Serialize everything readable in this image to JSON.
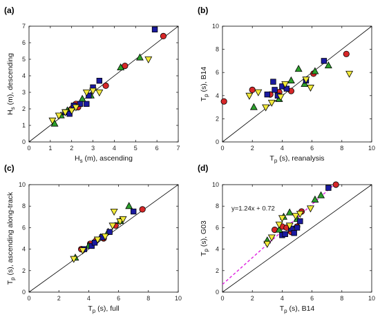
{
  "colors": {
    "red": "#d62728",
    "green": "#2ca02c",
    "blue": "#1a1aa0",
    "yellow": "#f2ea3a",
    "fit": "#e020e0",
    "identity": "#000000"
  },
  "chart_data": [
    {
      "type": "scatter",
      "panel_label": "(a)",
      "xlabel": "H_s (m), ascending",
      "ylabel": "H_s (m), descending",
      "xlim": [
        0,
        7
      ],
      "ylim": [
        0,
        7
      ],
      "xticks": [
        0,
        1,
        2,
        3,
        4,
        5,
        6,
        7
      ],
      "yticks": [
        0,
        1,
        2,
        3,
        4,
        5,
        6,
        7
      ],
      "identity_line": true,
      "series": [
        {
          "marker": "circle",
          "color": "red",
          "points": [
            [
              2.0,
              2.0
            ],
            [
              2.1,
              2.2
            ],
            [
              2.2,
              2.3
            ],
            [
              2.3,
              2.1
            ],
            [
              3.6,
              3.4
            ],
            [
              4.5,
              4.6
            ],
            [
              6.3,
              6.4
            ]
          ]
        },
        {
          "marker": "triangle",
          "color": "green",
          "points": [
            [
              1.2,
              1.1
            ],
            [
              1.5,
              1.6
            ],
            [
              1.8,
              1.9
            ],
            [
              2.5,
              2.6
            ],
            [
              2.9,
              2.8
            ],
            [
              4.3,
              4.5
            ],
            [
              5.2,
              5.1
            ]
          ]
        },
        {
          "marker": "square",
          "color": "blue",
          "points": [
            [
              1.7,
              1.8
            ],
            [
              1.9,
              1.7
            ],
            [
              2.1,
              2.2
            ],
            [
              2.4,
              2.3
            ],
            [
              2.7,
              2.3
            ],
            [
              2.8,
              2.8
            ],
            [
              3.3,
              3.7
            ],
            [
              3.0,
              3.3
            ],
            [
              5.9,
              6.8
            ]
          ]
        },
        {
          "marker": "triangle-down",
          "color": "yellow",
          "points": [
            [
              1.1,
              1.3
            ],
            [
              1.4,
              1.6
            ],
            [
              1.7,
              1.8
            ],
            [
              2.0,
              1.9
            ],
            [
              2.2,
              2.1
            ],
            [
              2.7,
              3.0
            ],
            [
              3.0,
              3.1
            ],
            [
              3.3,
              3.0
            ],
            [
              5.6,
              5.0
            ]
          ]
        }
      ]
    },
    {
      "type": "scatter",
      "panel_label": "(b)",
      "xlabel": "T_p (s), reanalysis",
      "ylabel": "T_p (s), B14",
      "xlim": [
        0,
        10
      ],
      "ylim": [
        0,
        10
      ],
      "xticks": [
        0,
        2,
        4,
        6,
        8,
        10
      ],
      "yticks": [
        0,
        2,
        4,
        6,
        8,
        10
      ],
      "identity_line": true,
      "series": [
        {
          "marker": "circle",
          "color": "red",
          "points": [
            [
              0.1,
              3.5
            ],
            [
              2.0,
              4.5
            ],
            [
              3.2,
              4.1
            ],
            [
              3.8,
              4.3
            ],
            [
              4.1,
              4.8
            ],
            [
              4.6,
              4.4
            ],
            [
              6.1,
              5.9
            ],
            [
              8.3,
              7.6
            ]
          ]
        },
        {
          "marker": "triangle",
          "color": "green",
          "points": [
            [
              2.1,
              3.0
            ],
            [
              3.8,
              3.7
            ],
            [
              4.6,
              5.3
            ],
            [
              5.1,
              6.3
            ],
            [
              5.5,
              5.0
            ],
            [
              6.2,
              6.1
            ],
            [
              7.1,
              6.6
            ]
          ]
        },
        {
          "marker": "square",
          "color": "blue",
          "points": [
            [
              3.0,
              4.1
            ],
            [
              3.4,
              5.2
            ],
            [
              3.5,
              4.5
            ],
            [
              3.7,
              4.0
            ],
            [
              4.0,
              4.8
            ],
            [
              4.3,
              4.6
            ],
            [
              5.6,
              5.3
            ],
            [
              6.8,
              7.0
            ]
          ]
        },
        {
          "marker": "triangle-down",
          "color": "yellow",
          "points": [
            [
              1.8,
              4.0
            ],
            [
              2.4,
              4.3
            ],
            [
              2.9,
              3.0
            ],
            [
              3.3,
              3.4
            ],
            [
              3.9,
              3.9
            ],
            [
              4.2,
              5.0
            ],
            [
              5.6,
              5.4
            ],
            [
              5.9,
              4.7
            ],
            [
              8.5,
              5.9
            ]
          ]
        }
      ]
    },
    {
      "type": "scatter",
      "panel_label": "(c)",
      "xlabel": "T_p (s), full",
      "ylabel": "T_p (s), ascending along-track",
      "xlim": [
        0,
        10
      ],
      "ylim": [
        0,
        10
      ],
      "xticks": [
        0,
        2,
        4,
        6,
        8,
        10
      ],
      "yticks": [
        0,
        2,
        4,
        6,
        8,
        10
      ],
      "identity_line": true,
      "series": [
        {
          "marker": "circle",
          "color": "red",
          "points": [
            [
              3.5,
              4.0
            ],
            [
              4.1,
              4.5
            ],
            [
              4.5,
              4.8
            ],
            [
              5.0,
              5.0
            ],
            [
              5.8,
              6.2
            ],
            [
              7.6,
              7.7
            ]
          ]
        },
        {
          "marker": "triangle",
          "color": "green",
          "points": [
            [
              3.1,
              3.2
            ],
            [
              4.0,
              4.3
            ],
            [
              4.8,
              5.1
            ],
            [
              5.3,
              5.6
            ],
            [
              6.1,
              6.6
            ],
            [
              6.7,
              8.0
            ]
          ]
        },
        {
          "marker": "square",
          "color": "blue",
          "points": [
            [
              3.7,
              4.0
            ],
            [
              4.2,
              4.3
            ],
            [
              4.4,
              4.6
            ],
            [
              4.9,
              5.1
            ],
            [
              5.4,
              5.6
            ],
            [
              7.0,
              7.5
            ]
          ]
        },
        {
          "marker": "triangle-down",
          "color": "yellow",
          "points": [
            [
              3.0,
              3.1
            ],
            [
              3.6,
              3.9
            ],
            [
              4.6,
              4.9
            ],
            [
              5.1,
              5.2
            ],
            [
              5.6,
              6.2
            ],
            [
              6.1,
              6.6
            ],
            [
              6.3,
              6.8
            ],
            [
              5.7,
              7.5
            ]
          ]
        }
      ]
    },
    {
      "type": "scatter",
      "panel_label": "(d)",
      "xlabel": "T_p (s), B14",
      "ylabel": "T_p (s),  G03",
      "xlim": [
        0,
        10
      ],
      "ylim": [
        0,
        10
      ],
      "xticks": [
        0,
        2,
        4,
        6,
        8,
        10
      ],
      "yticks": [
        0,
        2,
        4,
        6,
        8,
        10
      ],
      "identity_line": true,
      "fit": {
        "label": "y=1.24x + 0.72",
        "slope": 1.24,
        "intercept": 0.72,
        "style": "dashed"
      },
      "series": [
        {
          "marker": "circle",
          "color": "red",
          "points": [
            [
              3.5,
              5.8
            ],
            [
              4.0,
              6.1
            ],
            [
              4.3,
              6.0
            ],
            [
              4.6,
              5.6
            ],
            [
              5.0,
              6.1
            ],
            [
              5.3,
              7.5
            ],
            [
              7.6,
              10.0
            ]
          ]
        },
        {
          "marker": "triangle",
          "color": "green",
          "points": [
            [
              3.0,
              4.8
            ],
            [
              3.8,
              5.8
            ],
            [
              4.1,
              7.0
            ],
            [
              4.5,
              7.4
            ],
            [
              5.0,
              6.8
            ],
            [
              6.2,
              8.6
            ],
            [
              6.6,
              9.0
            ]
          ]
        },
        {
          "marker": "square",
          "color": "blue",
          "points": [
            [
              4.0,
              5.3
            ],
            [
              4.2,
              5.4
            ],
            [
              4.6,
              5.9
            ],
            [
              4.8,
              5.5
            ],
            [
              5.0,
              6.0
            ],
            [
              5.2,
              6.6
            ],
            [
              7.1,
              9.7
            ]
          ]
        },
        {
          "marker": "triangle-down",
          "color": "yellow",
          "points": [
            [
              3.0,
              4.5
            ],
            [
              3.3,
              5.1
            ],
            [
              3.8,
              6.3
            ],
            [
              4.0,
              6.9
            ],
            [
              4.5,
              6.2
            ],
            [
              4.9,
              7.1
            ],
            [
              5.2,
              7.3
            ],
            [
              5.9,
              7.8
            ]
          ]
        }
      ]
    }
  ]
}
